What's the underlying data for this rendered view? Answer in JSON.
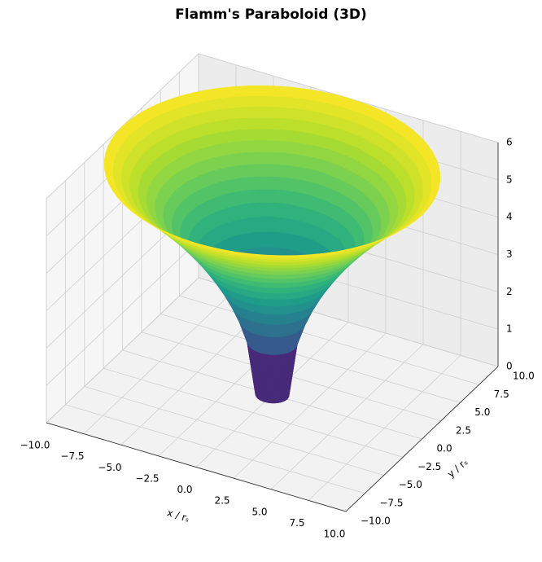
{
  "chart_data": {
    "type": "surface",
    "title": "Flamm's Paraboloid (3D)",
    "xlabel": "x / rₛ",
    "ylabel": "y / rₛ",
    "radius": [
      1,
      1.5,
      2,
      2.5,
      3,
      3.5,
      4,
      4.5,
      5,
      5.5,
      6,
      6.5,
      7,
      7.5,
      8,
      8.5,
      9,
      9.5,
      10
    ],
    "z": [
      0,
      1.41,
      2,
      2.45,
      2.83,
      3.16,
      3.46,
      3.74,
      4,
      4.24,
      4.47,
      4.69,
      4.9,
      5.1,
      5.29,
      5.48,
      5.66,
      5.83,
      6
    ],
    "colormap": "viridis",
    "xlim": [
      -10,
      10
    ],
    "ylim": [
      -10,
      10
    ],
    "zlim": [
      0,
      6
    ],
    "xticks": [
      {
        "value": -10,
        "label": "−10.0"
      },
      {
        "value": -7.5,
        "label": "−7.5"
      },
      {
        "value": -5,
        "label": "−5.0"
      },
      {
        "value": -2.5,
        "label": "−2.5"
      },
      {
        "value": 0,
        "label": "0.0"
      },
      2.5,
      {
        "value": 5,
        "label": "5.0"
      },
      7.5,
      {
        "value": 10,
        "label": "10.0"
      }
    ],
    "yticks": [
      {
        "value": -10,
        "label": "−10.0"
      },
      {
        "value": -7.5,
        "label": "−7.5"
      },
      {
        "value": -5,
        "label": "−5.0"
      },
      {
        "value": -2.5,
        "label": "−2.5"
      },
      {
        "value": 0,
        "label": "0.0"
      },
      2.5,
      {
        "value": 5,
        "label": "5.0"
      },
      7.5,
      {
        "value": 10,
        "label": "10.0"
      }
    ],
    "zticks": [
      0,
      1,
      2,
      3,
      4,
      5,
      6
    ],
    "grid": true
  }
}
